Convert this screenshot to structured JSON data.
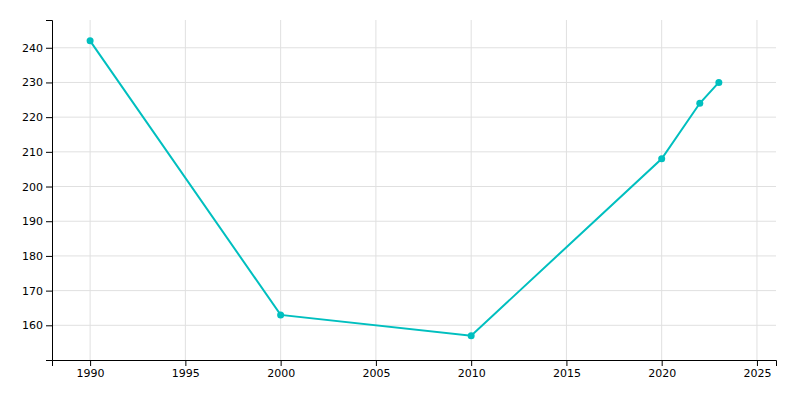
{
  "chart_data": {
    "type": "line",
    "x": [
      1990,
      2000,
      2010,
      2020,
      2022,
      2023
    ],
    "values": [
      242,
      163,
      157,
      208,
      224,
      230
    ],
    "color": "#00BFBF",
    "marker": "circle",
    "xlim": [
      1988,
      2026
    ],
    "ylim": [
      150,
      248
    ],
    "xticks": [
      1990,
      1995,
      2000,
      2005,
      2010,
      2015,
      2020,
      2025
    ],
    "yticks": [
      160,
      170,
      180,
      190,
      200,
      210,
      220,
      230,
      240
    ],
    "grid": true
  }
}
